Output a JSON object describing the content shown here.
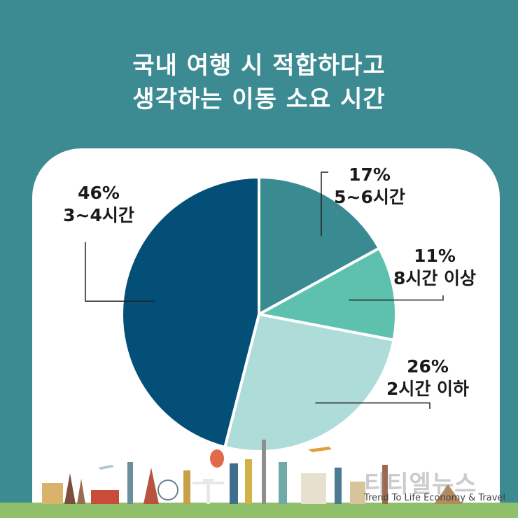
{
  "header": {
    "title_line1": "국내 여행 시 적합하다고",
    "title_line2": "생각하는 이동 소요 시간"
  },
  "colors": {
    "background": "#3d8b92",
    "card": "#ffffff",
    "slice_5_6h": "#3a8a91",
    "slice_8h_plus": "#5dc1ad",
    "slice_2h_below": "#aedcd9",
    "slice_3_4h": "#034f78"
  },
  "chart_data": {
    "type": "pie",
    "start": "12 o'clock",
    "direction": "clockwise",
    "slices": [
      {
        "label": "5~6시간",
        "value": 17,
        "value_label": "17%",
        "color": "#3a8a91"
      },
      {
        "label": "8시간 이상",
        "value": 11,
        "value_label": "11%",
        "color": "#5dc1ad"
      },
      {
        "label": "2시간 이하",
        "value": 26,
        "value_label": "26%",
        "color": "#aedcd9"
      },
      {
        "label": "3~4시간",
        "value": 46,
        "value_label": "46%",
        "color": "#034f78"
      }
    ]
  },
  "footer": {
    "brand_korean": "티티엘뉴스",
    "brand_tagline": "Trend To Life Economy & Travel"
  },
  "decoration": {
    "skyline": "world-landmarks-skyline illustration"
  }
}
